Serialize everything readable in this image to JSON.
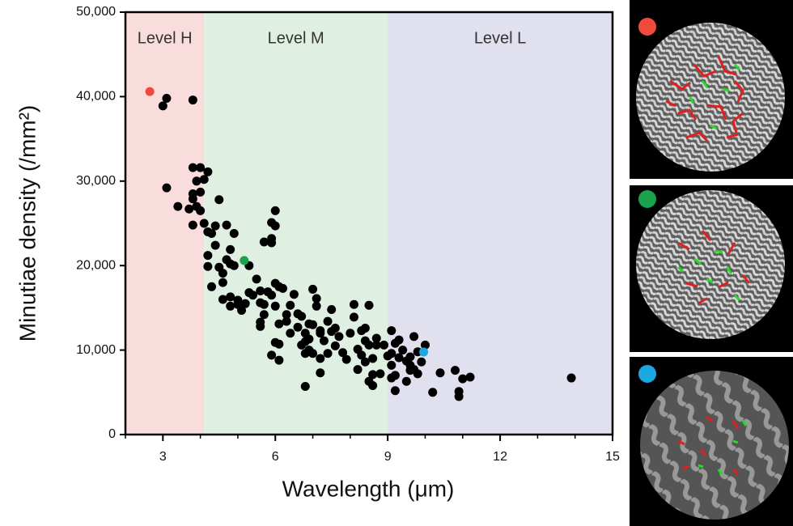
{
  "chart_data": {
    "type": "scatter",
    "x_label": "Wavelength (μm)",
    "y_label": "Minutiae density (/mm²)",
    "xlim": [
      2,
      15
    ],
    "ylim": [
      0,
      50000
    ],
    "xticks": [
      3,
      6,
      9,
      12,
      15
    ],
    "xminorticks": [
      2,
      4,
      5,
      7,
      8,
      10,
      11,
      13,
      14
    ],
    "yticks": [
      0,
      {
        "value": 10000,
        "label": "10,000"
      },
      {
        "value": 20000,
        "label": "20,000"
      },
      {
        "value": 30000,
        "label": "30,000"
      },
      {
        "value": 40000,
        "label": "40,000"
      },
      {
        "value": 50000,
        "label": "50,000"
      }
    ],
    "regions": [
      {
        "label": "Level H",
        "start": 2,
        "end": 4.1,
        "color": "#f9dcdc"
      },
      {
        "label": "Level M",
        "start": 4.1,
        "end": 9,
        "color": "#dff0e2"
      },
      {
        "label": "Level L",
        "start": 9,
        "end": 15,
        "color": "#e0e0ee"
      }
    ],
    "series": [
      {
        "color": "#000000",
        "x": [
          3.0,
          3.1,
          3.8,
          3.1,
          3.4,
          3.7,
          3.8,
          3.8,
          3.9,
          3.8,
          4.0,
          4.2,
          4.1,
          4.0,
          3.9,
          3.8,
          4.0,
          4.1,
          4.2,
          4.3,
          4.4,
          4.5,
          4.4,
          4.7,
          4.9,
          4.8,
          4.2,
          4.2,
          4.3,
          4.5,
          4.6,
          4.7,
          4.8,
          4.9,
          4.6,
          4.6,
          4.8,
          4.8,
          5.0,
          5.0,
          5.1,
          5.2,
          5.3,
          5.4,
          5.3,
          5.5,
          5.6,
          5.6,
          5.7,
          5.7,
          5.6,
          5.6,
          5.7,
          5.9,
          5.9,
          5.9,
          6.0,
          6.0,
          5.8,
          5.9,
          6.0,
          6.1,
          6.2,
          6.0,
          6.1,
          6.0,
          6.1,
          5.9,
          6.1,
          6.3,
          6.3,
          6.4,
          6.5,
          6.4,
          6.6,
          6.6,
          6.7,
          6.7,
          6.8,
          6.9,
          7.0,
          6.9,
          6.8,
          6.9,
          6.8,
          6.8,
          7.0,
          7.1,
          7.1,
          7.0,
          7.2,
          7.2,
          7.3,
          7.4,
          7.5,
          7.5,
          7.4,
          7.6,
          7.6,
          7.7,
          7.8,
          7.9,
          8.0,
          8.1,
          8.1,
          8.2,
          8.3,
          8.3,
          8.2,
          8.4,
          8.4,
          8.5,
          8.5,
          8.5,
          8.6,
          8.6,
          8.7,
          8.7,
          8.8,
          8.4,
          8.6,
          7.2,
          7.2,
          8.9,
          9.1,
          9.1,
          9.1,
          9.2,
          9.2,
          9.3,
          9.2,
          9.4,
          9.5,
          9.5,
          9.6,
          9.6,
          9.7,
          9.7,
          9.8,
          9.9,
          10.0,
          10.2,
          10.4,
          10.8,
          10.9,
          10.9,
          11.0,
          11.2,
          13.9,
          9.1,
          9.3,
          9.0,
          9.6,
          9.8
        ],
        "values": [
          38900,
          39800,
          39600,
          29200,
          27000,
          26700,
          27900,
          28500,
          30000,
          31600,
          31600,
          31100,
          30200,
          28700,
          27000,
          24800,
          26500,
          25000,
          24000,
          23800,
          22400,
          27800,
          24700,
          24800,
          23800,
          21900,
          21200,
          19900,
          17500,
          19800,
          19100,
          20700,
          20200,
          20000,
          18000,
          16000,
          15200,
          16300,
          15400,
          15900,
          14700,
          15500,
          16800,
          16500,
          20000,
          18400,
          17000,
          15600,
          15400,
          14200,
          13300,
          12800,
          22800,
          22700,
          23200,
          25100,
          24700,
          26500,
          16900,
          16500,
          17900,
          17500,
          17300,
          15200,
          13100,
          10900,
          10700,
          9400,
          8800,
          13400,
          14200,
          15300,
          16600,
          12000,
          14300,
          12700,
          14000,
          10600,
          12000,
          13100,
          13000,
          11300,
          11000,
          10000,
          9600,
          5700,
          17200,
          16100,
          15200,
          9600,
          12000,
          9000,
          11100,
          13400,
          14800,
          12200,
          9600,
          10500,
          12600,
          11600,
          9700,
          8900,
          12000,
          15400,
          13900,
          10100,
          12300,
          9400,
          7700,
          12600,
          11100,
          15300,
          10600,
          6300,
          9000,
          7100,
          11400,
          10600,
          7200,
          8600,
          5800,
          7300,
          12300,
          10600,
          12300,
          9600,
          8200,
          10800,
          7000,
          9100,
          5200,
          10000,
          8700,
          6300,
          9200,
          7600,
          11600,
          7700,
          9800,
          8600,
          10600,
          5000,
          7300,
          7600,
          5100,
          4500,
          6600,
          6800,
          6700,
          6700,
          11200,
          9300,
          8200,
          7200
        ]
      },
      {
        "color": "#f04a3c",
        "x": [
          2.65
        ],
        "values": [
          40600
        ]
      },
      {
        "color": "#1aa34a",
        "x": [
          5.17
        ],
        "values": [
          20600
        ]
      },
      {
        "color": "#1ba8e0",
        "x": [
          9.96
        ],
        "values": [
          9770
        ]
      }
    ]
  }
}
